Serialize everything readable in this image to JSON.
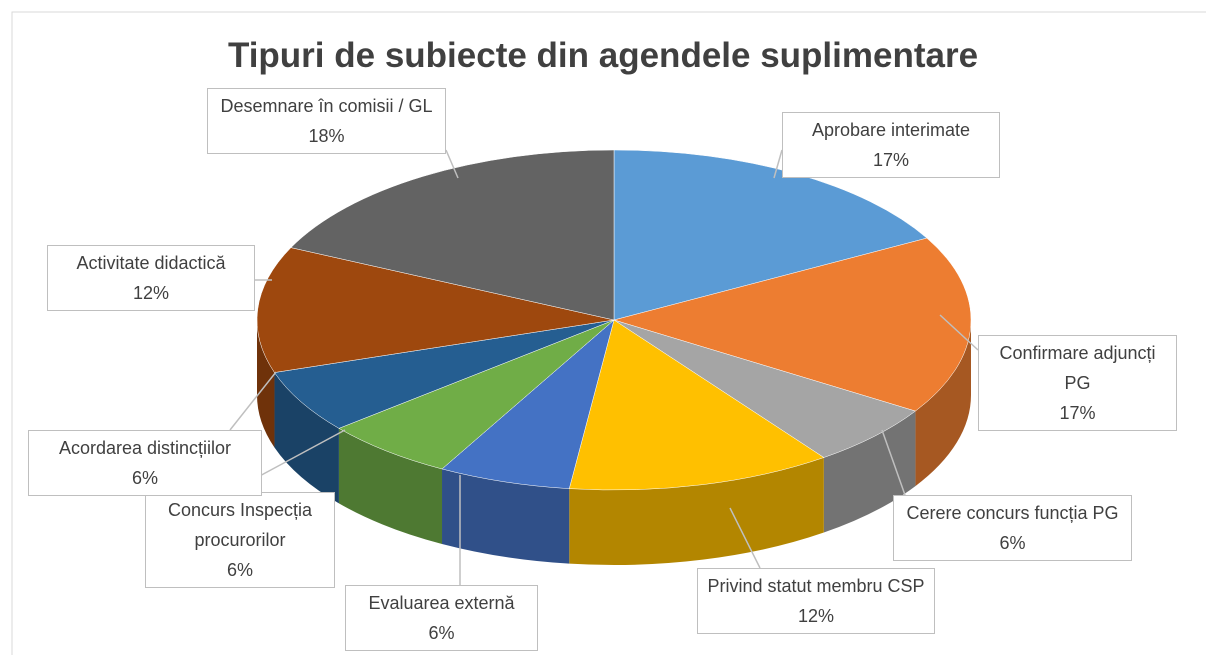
{
  "chart_data": {
    "type": "pie3d",
    "title": "Tipuri de subiecte din agendele suplimentare",
    "categories": [
      "Aprobare interimate",
      "Confirmare adjuncți PG",
      "Cerere concurs funcția PG",
      "Privind statut membru CSP",
      "Evaluarea externă",
      "Concurs Inspecția procurorilor",
      "Acordarea distincțiilor",
      "Activitate didactică",
      "Desemnare în comisii / GL"
    ],
    "values": [
      17,
      17,
      6,
      12,
      6,
      6,
      6,
      12,
      18
    ],
    "value_labels": [
      "17%",
      "17%",
      "6%",
      "12%",
      "6%",
      "6%",
      "6%",
      "12%",
      "18%"
    ],
    "colors": [
      "#5b9bd5",
      "#ed7d31",
      "#a5a5a5",
      "#ffc000",
      "#4472c4",
      "#70ad47",
      "#255e91",
      "#9e480e",
      "#636363"
    ]
  }
}
